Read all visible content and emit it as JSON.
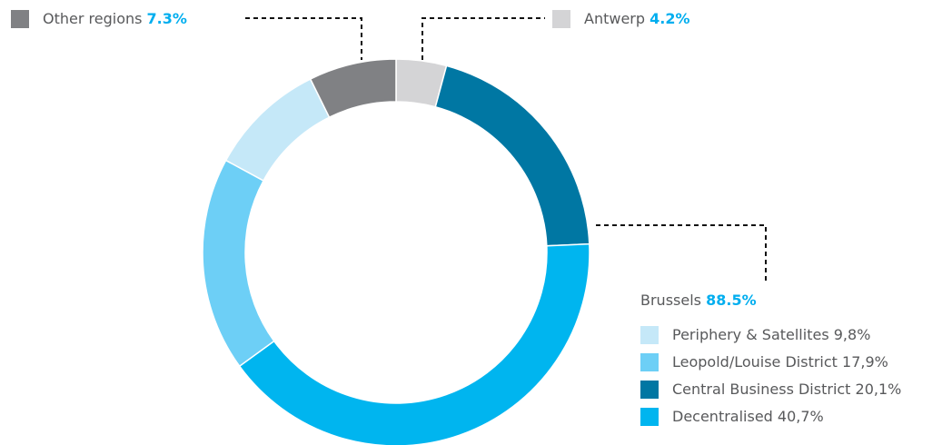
{
  "chart_data": {
    "type": "donut",
    "categories": [
      "Antwerp",
      "Central Business District",
      "Decentralised",
      "Leopold/Louise District",
      "Periphery & Satellites",
      "Other regions"
    ],
    "values": [
      4.2,
      20.1,
      40.7,
      17.9,
      9.8,
      7.3
    ],
    "value_labels": [
      "4.2%",
      "20,1%",
      "40,7%",
      "17,9%",
      "9,8%",
      "7.3%"
    ],
    "colors": [
      "#d4d4d6",
      "#0077a3",
      "#00b5ef",
      "#6dcff6",
      "#c5e8f8",
      "#808184"
    ],
    "group": {
      "name": "Brussels",
      "value": 88.5,
      "value_label": "88.5%"
    }
  }
}
